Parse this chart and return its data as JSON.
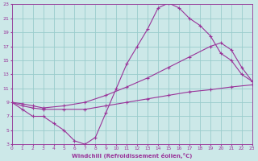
{
  "xlabel": "Windchill (Refroidissement éolien,°C)",
  "xlim": [
    0,
    23
  ],
  "ylim": [
    3,
    23
  ],
  "xticks": [
    0,
    1,
    2,
    3,
    4,
    5,
    6,
    7,
    8,
    9,
    10,
    11,
    12,
    13,
    14,
    15,
    16,
    17,
    18,
    19,
    20,
    21,
    22,
    23
  ],
  "yticks": [
    3,
    5,
    7,
    9,
    11,
    13,
    15,
    17,
    19,
    21,
    23
  ],
  "background_color": "#cce8e8",
  "grid_color": "#99cccc",
  "line_color": "#993399",
  "line1_x": [
    0,
    1,
    2,
    3,
    4,
    5,
    6,
    7,
    8,
    9,
    10,
    11,
    12,
    13,
    14,
    15,
    16,
    17,
    18,
    19,
    20,
    21,
    22,
    23
  ],
  "line1_y": [
    9,
    8,
    7,
    7,
    6,
    5,
    3.5,
    3,
    4,
    7.5,
    11,
    14.5,
    17,
    19.5,
    22.5,
    23.2,
    22.5,
    21,
    20,
    18.5,
    16,
    15,
    13,
    12
  ],
  "line2_x": [
    0,
    1,
    2,
    3,
    5,
    7,
    9,
    11,
    13,
    15,
    17,
    19,
    21,
    23
  ],
  "line2_y": [
    9,
    8.5,
    8.2,
    8.0,
    8.0,
    8.0,
    8.5,
    9.0,
    9.5,
    10.0,
    10.5,
    10.8,
    11.2,
    11.5
  ],
  "line3_x": [
    0,
    1,
    2,
    3,
    5,
    7,
    9,
    11,
    13,
    15,
    17,
    19,
    20,
    21,
    22,
    23
  ],
  "line3_y": [
    9,
    8.8,
    8.5,
    8.2,
    8.5,
    9.0,
    10.0,
    11.2,
    12.5,
    14.0,
    15.5,
    17.0,
    17.5,
    16.5,
    14.0,
    12.0
  ]
}
